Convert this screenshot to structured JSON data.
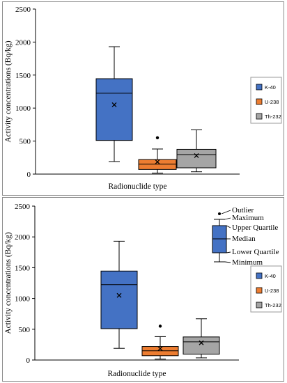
{
  "colors": {
    "k40": "#4472C4",
    "u238": "#ED7D31",
    "th232": "#A5A5A5",
    "box_stroke": "#000000",
    "legend_border": "#9a9a9a"
  },
  "chart_data": [
    {
      "type": "box",
      "ylabel": "Activity concentrations (Bq/kg)",
      "xlabel": "Radionuclide type",
      "ylim": [
        0,
        2500
      ],
      "yticks": [
        "0",
        "500",
        "1000",
        "1500",
        "2000",
        "2500"
      ],
      "grid": false,
      "legend_position": "right",
      "series": [
        {
          "name": "K-40",
          "min": 190,
          "q1": 510,
          "median": 1225,
          "q3": 1445,
          "max": 1930,
          "mean": 1050,
          "outliers": []
        },
        {
          "name": "U-238",
          "min": 15,
          "q1": 70,
          "median": 150,
          "q3": 220,
          "max": 380,
          "mean": 185,
          "outliers": [
            550
          ]
        },
        {
          "name": "Th-232",
          "min": 35,
          "q1": 95,
          "median": 295,
          "q3": 375,
          "max": 670,
          "mean": 280,
          "outliers": []
        }
      ]
    },
    {
      "type": "box",
      "ylabel": "Activity concentrations (Bq/kg)",
      "xlabel": "Radionuclide type",
      "ylim": [
        0,
        2500
      ],
      "yticks": [
        "0",
        "500",
        "1000",
        "1500",
        "2000",
        "2500"
      ],
      "grid": false,
      "legend_position": "right",
      "series": [
        {
          "name": "K-40",
          "min": 190,
          "q1": 510,
          "median": 1225,
          "q3": 1445,
          "max": 1930,
          "mean": 1050,
          "outliers": []
        },
        {
          "name": "U-238",
          "min": 15,
          "q1": 70,
          "median": 150,
          "q3": 220,
          "max": 380,
          "mean": 185,
          "outliers": [
            550
          ]
        },
        {
          "name": "Th-232",
          "min": 35,
          "q1": 95,
          "median": 295,
          "q3": 375,
          "max": 670,
          "mean": 280,
          "outliers": []
        }
      ],
      "key": {
        "labels": [
          "Outlier",
          "Maximum",
          "Upper Quartile",
          "Median",
          "Lower Quartile",
          "Minimum"
        ]
      }
    }
  ]
}
